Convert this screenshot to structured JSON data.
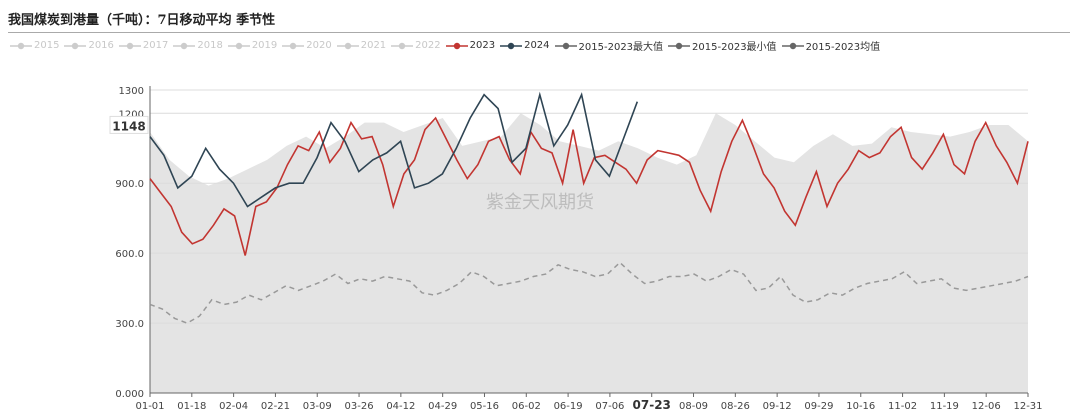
{
  "page": {
    "title": "我国煤炭到港量（千吨）：7日移动平均 季节性",
    "watermark": "紫金天风期货",
    "crosshair_value": "1148",
    "crosshair_date": "07-23"
  },
  "chart_data": {
    "type": "line",
    "title": "我国煤炭到港量（千吨）：7日移动平均 季节性",
    "xlabel": "",
    "ylabel": "",
    "ylim": [
      0,
      1300
    ],
    "y_ticks": [
      "0.000",
      "300.0",
      "600.0",
      "900.0",
      "1200",
      "1300"
    ],
    "x_ticks": [
      "01-01",
      "01-18",
      "02-04",
      "02-21",
      "03-09",
      "03-26",
      "04-12",
      "04-29",
      "05-16",
      "06-02",
      "06-19",
      "07-06",
      "07-23",
      "08-09",
      "08-26",
      "09-12",
      "09-29",
      "10-16",
      "11-02",
      "11-19",
      "12-06",
      "12-31"
    ],
    "grid": true,
    "legend_position": "top",
    "series": [
      {
        "name": "2015",
        "color": "#cccccc",
        "active": false
      },
      {
        "name": "2016",
        "color": "#cccccc",
        "active": false
      },
      {
        "name": "2017",
        "color": "#cccccc",
        "active": false
      },
      {
        "name": "2018",
        "color": "#cccccc",
        "active": false
      },
      {
        "name": "2019",
        "color": "#cccccc",
        "active": false
      },
      {
        "name": "2020",
        "color": "#cccccc",
        "active": false
      },
      {
        "name": "2021",
        "color": "#cccccc",
        "active": false
      },
      {
        "name": "2022",
        "color": "#cccccc",
        "active": false
      },
      {
        "name": "2023",
        "color": "#c23531",
        "active": true,
        "values": [
          920,
          860,
          800,
          690,
          640,
          660,
          720,
          790,
          760,
          590,
          800,
          820,
          880,
          980,
          1060,
          1040,
          1120,
          990,
          1050,
          1160,
          1090,
          1100,
          980,
          800,
          940,
          1000,
          1130,
          1180,
          1090,
          1000,
          920,
          980,
          1080,
          1100,
          1000,
          940,
          1120,
          1050,
          1030,
          900,
          1130,
          900,
          1010,
          1020,
          990,
          960,
          900,
          1000,
          1040,
          1030,
          1020,
          990,
          870,
          780,
          950,
          1080,
          1170,
          1060,
          940,
          880,
          780,
          720,
          840,
          950,
          800,
          900,
          960,
          1040,
          1010,
          1030,
          1100,
          1140,
          1010,
          960,
          1030,
          1110,
          980,
          940,
          1080,
          1160,
          1060,
          990,
          900,
          1080
        ]
      },
      {
        "name": "2024",
        "color": "#2f4554",
        "active": true,
        "values": [
          1100,
          1020,
          880,
          930,
          1050,
          960,
          900,
          800,
          840,
          880,
          900,
          900,
          1010,
          1160,
          1080,
          950,
          1000,
          1030,
          1080,
          880,
          900,
          940,
          1050,
          1180,
          1280,
          1220,
          990,
          1050,
          1280,
          1060,
          1150,
          1280,
          1000,
          930,
          1090,
          1250
        ]
      },
      {
        "name": "2015-2023最大值",
        "color": "#e3e3e3",
        "active": true,
        "values": [
          1120,
          1000,
          930,
          890,
          920,
          960,
          1000,
          1060,
          1100,
          1050,
          1100,
          1160,
          1160,
          1120,
          1150,
          1180,
          1060,
          1080,
          1100,
          1200,
          1150,
          1080,
          1060,
          1040,
          1080,
          1050,
          1010,
          980,
          1020,
          1200,
          1150,
          1080,
          1010,
          990,
          1060,
          1110,
          1060,
          1070,
          1140,
          1120,
          1110,
          1100,
          1120,
          1150,
          1150,
          1080
        ]
      },
      {
        "name": "2015-2023最小值",
        "color": "#e8e8e8",
        "active": true,
        "values": [
          0,
          0,
          0,
          0,
          0,
          0,
          0,
          0,
          0,
          0,
          0,
          0,
          0,
          0,
          0,
          0,
          0,
          0,
          0,
          0,
          0,
          0,
          0,
          0,
          0,
          0,
          0,
          0,
          0,
          0,
          0,
          0,
          0,
          0,
          0,
          0,
          0,
          0,
          0,
          0,
          0,
          0,
          0,
          0,
          0,
          0
        ]
      },
      {
        "name": "2015-2023均值",
        "color": "#999999",
        "active": true,
        "values": [
          380,
          360,
          320,
          300,
          330,
          400,
          380,
          390,
          420,
          400,
          430,
          460,
          440,
          460,
          480,
          510,
          470,
          490,
          480,
          500,
          490,
          480,
          430,
          420,
          440,
          470,
          520,
          500,
          460,
          470,
          480,
          500,
          510,
          550,
          530,
          520,
          500,
          510,
          560,
          510,
          470,
          480,
          500,
          500,
          510,
          480,
          500,
          530,
          510,
          440,
          450,
          500,
          420,
          390,
          400,
          430,
          420,
          450,
          470,
          480,
          490,
          520,
          470,
          480,
          490,
          450,
          440,
          450,
          460,
          470,
          480,
          500
        ]
      }
    ]
  }
}
